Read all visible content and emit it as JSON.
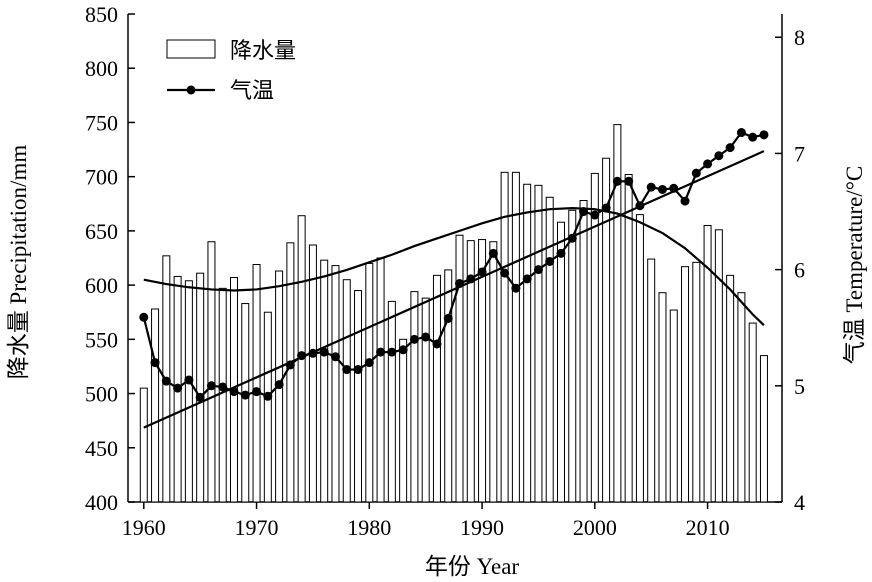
{
  "chart_data": {
    "type": "bar",
    "xlabel": "年份 Year",
    "ylabel_left": "降水量 Precipitation/mm",
    "ylabel_right": "气温 Temperature/°C",
    "x_ticks": [
      1960,
      1970,
      1980,
      1990,
      2000,
      2010
    ],
    "x_range": [
      1958.6,
      2016.6
    ],
    "y_left_ticks": [
      400,
      450,
      500,
      550,
      600,
      650,
      700,
      750,
      800,
      850
    ],
    "y_left_range": [
      400,
      850
    ],
    "y_right_ticks": [
      4,
      5,
      6,
      7,
      8
    ],
    "y_right_range": [
      4,
      8.2
    ],
    "legend_position": "top-left",
    "legend": [
      {
        "label": "降水量",
        "kind": "bar"
      },
      {
        "label": "气温",
        "kind": "line-marker"
      }
    ],
    "x": [
      1960,
      1961,
      1962,
      1963,
      1964,
      1965,
      1966,
      1967,
      1968,
      1969,
      1970,
      1971,
      1972,
      1973,
      1974,
      1975,
      1976,
      1977,
      1978,
      1979,
      1980,
      1981,
      1982,
      1983,
      1984,
      1985,
      1986,
      1987,
      1988,
      1989,
      1990,
      1991,
      1992,
      1993,
      1994,
      1995,
      1996,
      1997,
      1998,
      1999,
      2000,
      2001,
      2002,
      2003,
      2004,
      2005,
      2006,
      2007,
      2008,
      2009,
      2010,
      2011,
      2012,
      2013,
      2014,
      2015
    ],
    "series": [
      {
        "name": "降水量",
        "type": "bar",
        "axis": "left",
        "values": [
          505,
          578,
          627,
          608,
          604,
          611,
          640,
          597,
          607,
          583,
          619,
          575,
          613,
          639,
          664,
          637,
          623,
          618,
          605,
          595,
          620,
          625,
          585,
          550,
          594,
          588,
          609,
          614,
          646,
          641,
          642,
          640,
          704,
          704,
          693,
          692,
          681,
          658,
          669,
          678,
          703,
          717,
          748,
          702,
          665,
          624,
          593,
          577,
          617,
          621,
          655,
          651,
          609,
          593,
          565,
          535
        ]
      },
      {
        "name": "气温",
        "type": "line-marker",
        "axis": "right",
        "values": [
          5.59,
          5.2,
          5.04,
          4.98,
          5.05,
          4.9,
          5.0,
          4.99,
          4.95,
          4.92,
          4.95,
          4.91,
          5.01,
          5.18,
          5.26,
          5.28,
          5.29,
          5.25,
          5.14,
          5.14,
          5.2,
          5.29,
          5.29,
          5.31,
          5.4,
          5.42,
          5.36,
          5.58,
          5.88,
          5.92,
          5.98,
          6.14,
          5.97,
          5.84,
          5.92,
          6.0,
          6.07,
          6.14,
          6.27,
          6.5,
          6.47,
          6.53,
          6.76,
          6.76,
          6.55,
          6.71,
          6.69,
          6.7,
          6.59,
          6.83,
          6.91,
          6.98,
          7.05,
          7.18,
          7.14,
          7.16
        ]
      }
    ],
    "trend_lines": [
      {
        "kind": "linear",
        "axis": "right",
        "x": [
          1960,
          2015
        ],
        "y": [
          4.64,
          7.02
        ]
      },
      {
        "kind": "polynomial",
        "axis": "left",
        "x": [
          1960,
          1962,
          1964,
          1966,
          1968,
          1970,
          1972,
          1974,
          1976,
          1978,
          1980,
          1982,
          1984,
          1986,
          1988,
          1990,
          1992,
          1994,
          1996,
          1998,
          2000,
          2002,
          2004,
          2006,
          2008,
          2010,
          2012,
          2014,
          2015
        ],
        "y": [
          605,
          601,
          598,
          596,
          595,
          596,
          599,
          603,
          608,
          614,
          621,
          628,
          636,
          643,
          650,
          657,
          663,
          667,
          670,
          671,
          670,
          666,
          658,
          648,
          634,
          616,
          596,
          573,
          563
        ]
      }
    ]
  }
}
